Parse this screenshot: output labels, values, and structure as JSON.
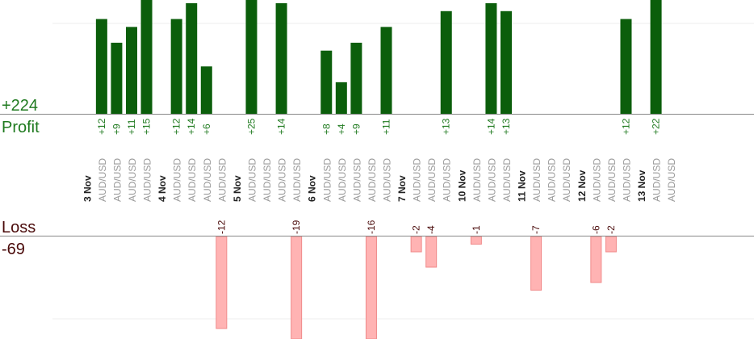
{
  "summary": {
    "profit_total": "+224",
    "profit_label": "Profit",
    "loss_label": "Loss",
    "loss_total": "-69"
  },
  "colors": {
    "profit_text": "#1f7a1f",
    "profit_bar": "#0b5e0b",
    "loss_text": "#4a0a0a",
    "loss_bar": "#ffb3b3",
    "loss_bar_edge": "#f08a8a",
    "axis": "#888888",
    "grid": "#eeeeee",
    "date_text": "#222222",
    "pair_text": "#999999"
  },
  "chart_data": {
    "type": "bar",
    "title": "",
    "profit_ylim": [
      0,
      14
    ],
    "loss_ylim": [
      0,
      12
    ],
    "columns": [
      {
        "date": "3 Nov"
      },
      {
        "pair": "AUD/USD",
        "value": 12,
        "label": "+12"
      },
      {
        "pair": "AUD/USD",
        "value": 9,
        "label": "+9"
      },
      {
        "pair": "AUD/USD",
        "value": 11,
        "label": "+11"
      },
      {
        "pair": "AUD/USD",
        "value": 15,
        "label": "+15"
      },
      {
        "date": "4 Nov"
      },
      {
        "pair": "AUD/USD",
        "value": 12,
        "label": "+12"
      },
      {
        "pair": "AUD/USD",
        "value": 14,
        "label": "+14"
      },
      {
        "pair": "AUD/USD",
        "value": 6,
        "label": "+6"
      },
      {
        "pair": "AUD/USD",
        "value": -12,
        "label": "-12"
      },
      {
        "date": "5 Nov"
      },
      {
        "pair": "AUD/USD",
        "value": 25,
        "label": "+25"
      },
      {
        "pair": "AUD/USD"
      },
      {
        "pair": "AUD/USD",
        "value": 14,
        "label": "+14"
      },
      {
        "pair": "AUD/USD",
        "value": -19,
        "label": "-19"
      },
      {
        "date": "6 Nov"
      },
      {
        "pair": "AUD/USD",
        "value": 8,
        "label": "+8"
      },
      {
        "pair": "AUD/USD",
        "value": 4,
        "label": "+4"
      },
      {
        "pair": "AUD/USD",
        "value": 9,
        "label": "+9"
      },
      {
        "pair": "AUD/USD",
        "value": -16,
        "label": "-16"
      },
      {
        "pair": "AUD/USD",
        "value": 11,
        "label": "+11"
      },
      {
        "date": "7 Nov"
      },
      {
        "pair": "AUD/USD",
        "value": -2,
        "label": "-2"
      },
      {
        "pair": "AUD/USD",
        "value": -4,
        "label": "-4"
      },
      {
        "pair": "AUD/USD",
        "value": 13,
        "label": "+13"
      },
      {
        "date": "10 Nov"
      },
      {
        "pair": "AUD/USD",
        "value": -1,
        "label": "-1"
      },
      {
        "pair": "AUD/USD",
        "value": 14,
        "label": "+14"
      },
      {
        "pair": "AUD/USD",
        "value": 13,
        "label": "+13"
      },
      {
        "date": "11 Nov"
      },
      {
        "pair": "AUD/USD",
        "value": -7,
        "label": "-7"
      },
      {
        "pair": "AUD/USD"
      },
      {
        "pair": "AUD/USD"
      },
      {
        "date": "12 Nov"
      },
      {
        "pair": "AUD/USD",
        "value": -6,
        "label": "-6"
      },
      {
        "pair": "AUD/USD",
        "value": -2,
        "label": "-2"
      },
      {
        "pair": "AUD/USD",
        "value": 12,
        "label": "+12"
      },
      {
        "date": "13 Nov"
      },
      {
        "pair": "AUD/USD",
        "value": 22,
        "label": "+22"
      },
      {
        "pair": "AUD/USD"
      }
    ]
  }
}
